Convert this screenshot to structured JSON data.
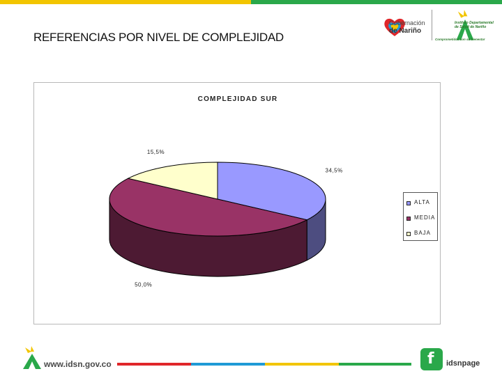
{
  "page": {
    "title": "REFERENCIAS POR NIVEL DE COMPLEJIDAD"
  },
  "header": {
    "gob_line1": "Gobernación",
    "gob_line2": "de Nariño",
    "ids_name": "Instituto Departamental de Salud de Nariño",
    "ids_slogan": "Comprometidos con su bienestar"
  },
  "chart_data": {
    "type": "pie",
    "title": "COMPLEJIDAD SUR",
    "categories": [
      "ALTA",
      "MEDIA",
      "BAJA"
    ],
    "values": [
      34.5,
      50.0,
      15.5
    ],
    "data_labels": [
      "34,5%",
      "50,0%",
      "15,5%"
    ],
    "colors": [
      "#9999ff",
      "#993366",
      "#ffffcc"
    ],
    "legend_position": "right",
    "three_d": true
  },
  "footer": {
    "url": "www.idsn.gov.co",
    "social_handle": "idsnpage",
    "fb_glyph": "f",
    "line_colors": [
      "#e0262a",
      "#1f9ad6",
      "#f2c500",
      "#2aa84a"
    ]
  }
}
